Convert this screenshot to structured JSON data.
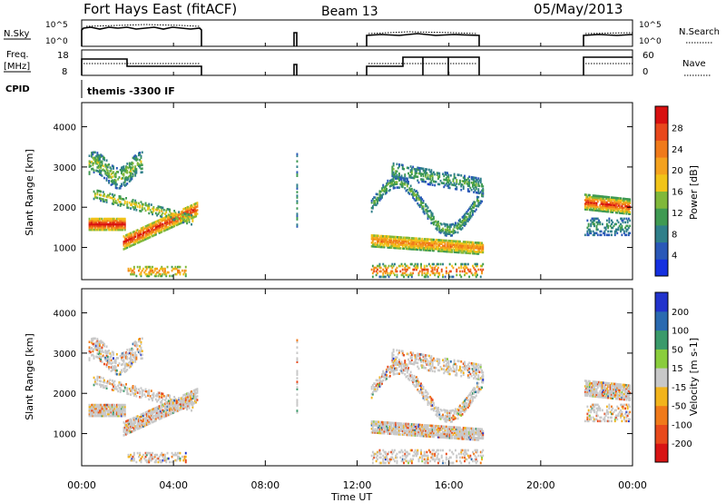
{
  "header": {
    "station": "Fort Hays East (fitACF)",
    "beam": "Beam 13",
    "date": "05/May/2013"
  },
  "top_panels": {
    "nsky_label": "N.Sky",
    "nsky_ticks": [
      "10^5",
      "10^0"
    ],
    "nsearch_label": "N.Search",
    "nsearch_ticks": [
      "10^5",
      "10^0"
    ],
    "freq_label": "Freq.",
    "freq_unit": "[MHz]",
    "freq_ticks": [
      "18",
      "8"
    ],
    "nave_label": "Nave",
    "nave_ticks": [
      "60",
      "0"
    ],
    "cpid_label": "CPID",
    "cpid_value": "themis -3300 IF"
  },
  "chart_data": [
    {
      "type": "heatmap",
      "name": "power",
      "ylabel": "Slant Range [km]",
      "yticks": [
        "4000",
        "3000",
        "2000",
        "1000"
      ],
      "ytick_values": [
        4000,
        3000,
        2000,
        1000
      ],
      "ylim": [
        200,
        4600
      ],
      "xlim": [
        0,
        24
      ],
      "colorbar": {
        "label": "Power [dB]",
        "ticks": [
          "28",
          "24",
          "20",
          "16",
          "12",
          "8",
          "4"
        ],
        "tick_values": [
          28,
          24,
          20,
          16,
          12,
          8,
          4
        ],
        "range": [
          0,
          32
        ],
        "colors": [
          "#1530e0",
          "#2a58b8",
          "#2f7f8a",
          "#3f9a52",
          "#80b83a",
          "#f1c419",
          "#f4a21e",
          "#f07a1a",
          "#e8481c",
          "#d81010"
        ]
      },
      "features": [
        {
          "hours": [
            0.3,
            1.5
          ],
          "range_km": [
            1500,
            1600
          ],
          "power_db": 28
        },
        {
          "hours": [
            1.8,
            5.0
          ],
          "range_km": [
            1100,
            2000
          ],
          "power_db": 26
        },
        {
          "hours": [
            0.3,
            2.5
          ],
          "range_km": [
            2600,
            3300
          ],
          "power_db": 10
        },
        {
          "hours": [
            12.6,
            17.5
          ],
          "range_km": [
            900,
            1300
          ],
          "power_db": 18
        },
        {
          "hours": [
            12.6,
            17.5
          ],
          "range_km": [
            1800,
            3200
          ],
          "power_db": 8
        },
        {
          "hours": [
            21.9,
            23.9
          ],
          "range_km": [
            1900,
            2300
          ],
          "power_db": 26
        }
      ]
    },
    {
      "type": "heatmap",
      "name": "velocity",
      "ylabel": "Slant Range [km]",
      "yticks": [
        "4000",
        "3000",
        "2000",
        "1000"
      ],
      "ytick_values": [
        4000,
        3000,
        2000,
        1000
      ],
      "ylim": [
        200,
        4600
      ],
      "xlim": [
        0,
        24
      ],
      "colorbar": {
        "label": "Velocity [m s-1]",
        "ticks": [
          "200",
          "100",
          "50",
          "15",
          "-15",
          "-50",
          "-100",
          "-200"
        ],
        "tick_values": [
          200,
          100,
          50,
          15,
          -15,
          -50,
          -100,
          -200
        ],
        "colors": [
          "#2233cc",
          "#2a6ab0",
          "#3a9a6a",
          "#8acd3c",
          "#c8c8c8",
          "#f2b41c",
          "#f07a1a",
          "#e84a1c",
          "#d81414"
        ]
      },
      "dominant_value": "ground scatter (grey)"
    }
  ],
  "x_axis": {
    "label": "Time UT",
    "ticks": [
      "00:00",
      "04:00",
      "08:00",
      "12:00",
      "16:00",
      "20:00",
      "00:00"
    ],
    "tick_values": [
      0,
      4,
      8,
      12,
      16,
      20,
      24
    ]
  }
}
